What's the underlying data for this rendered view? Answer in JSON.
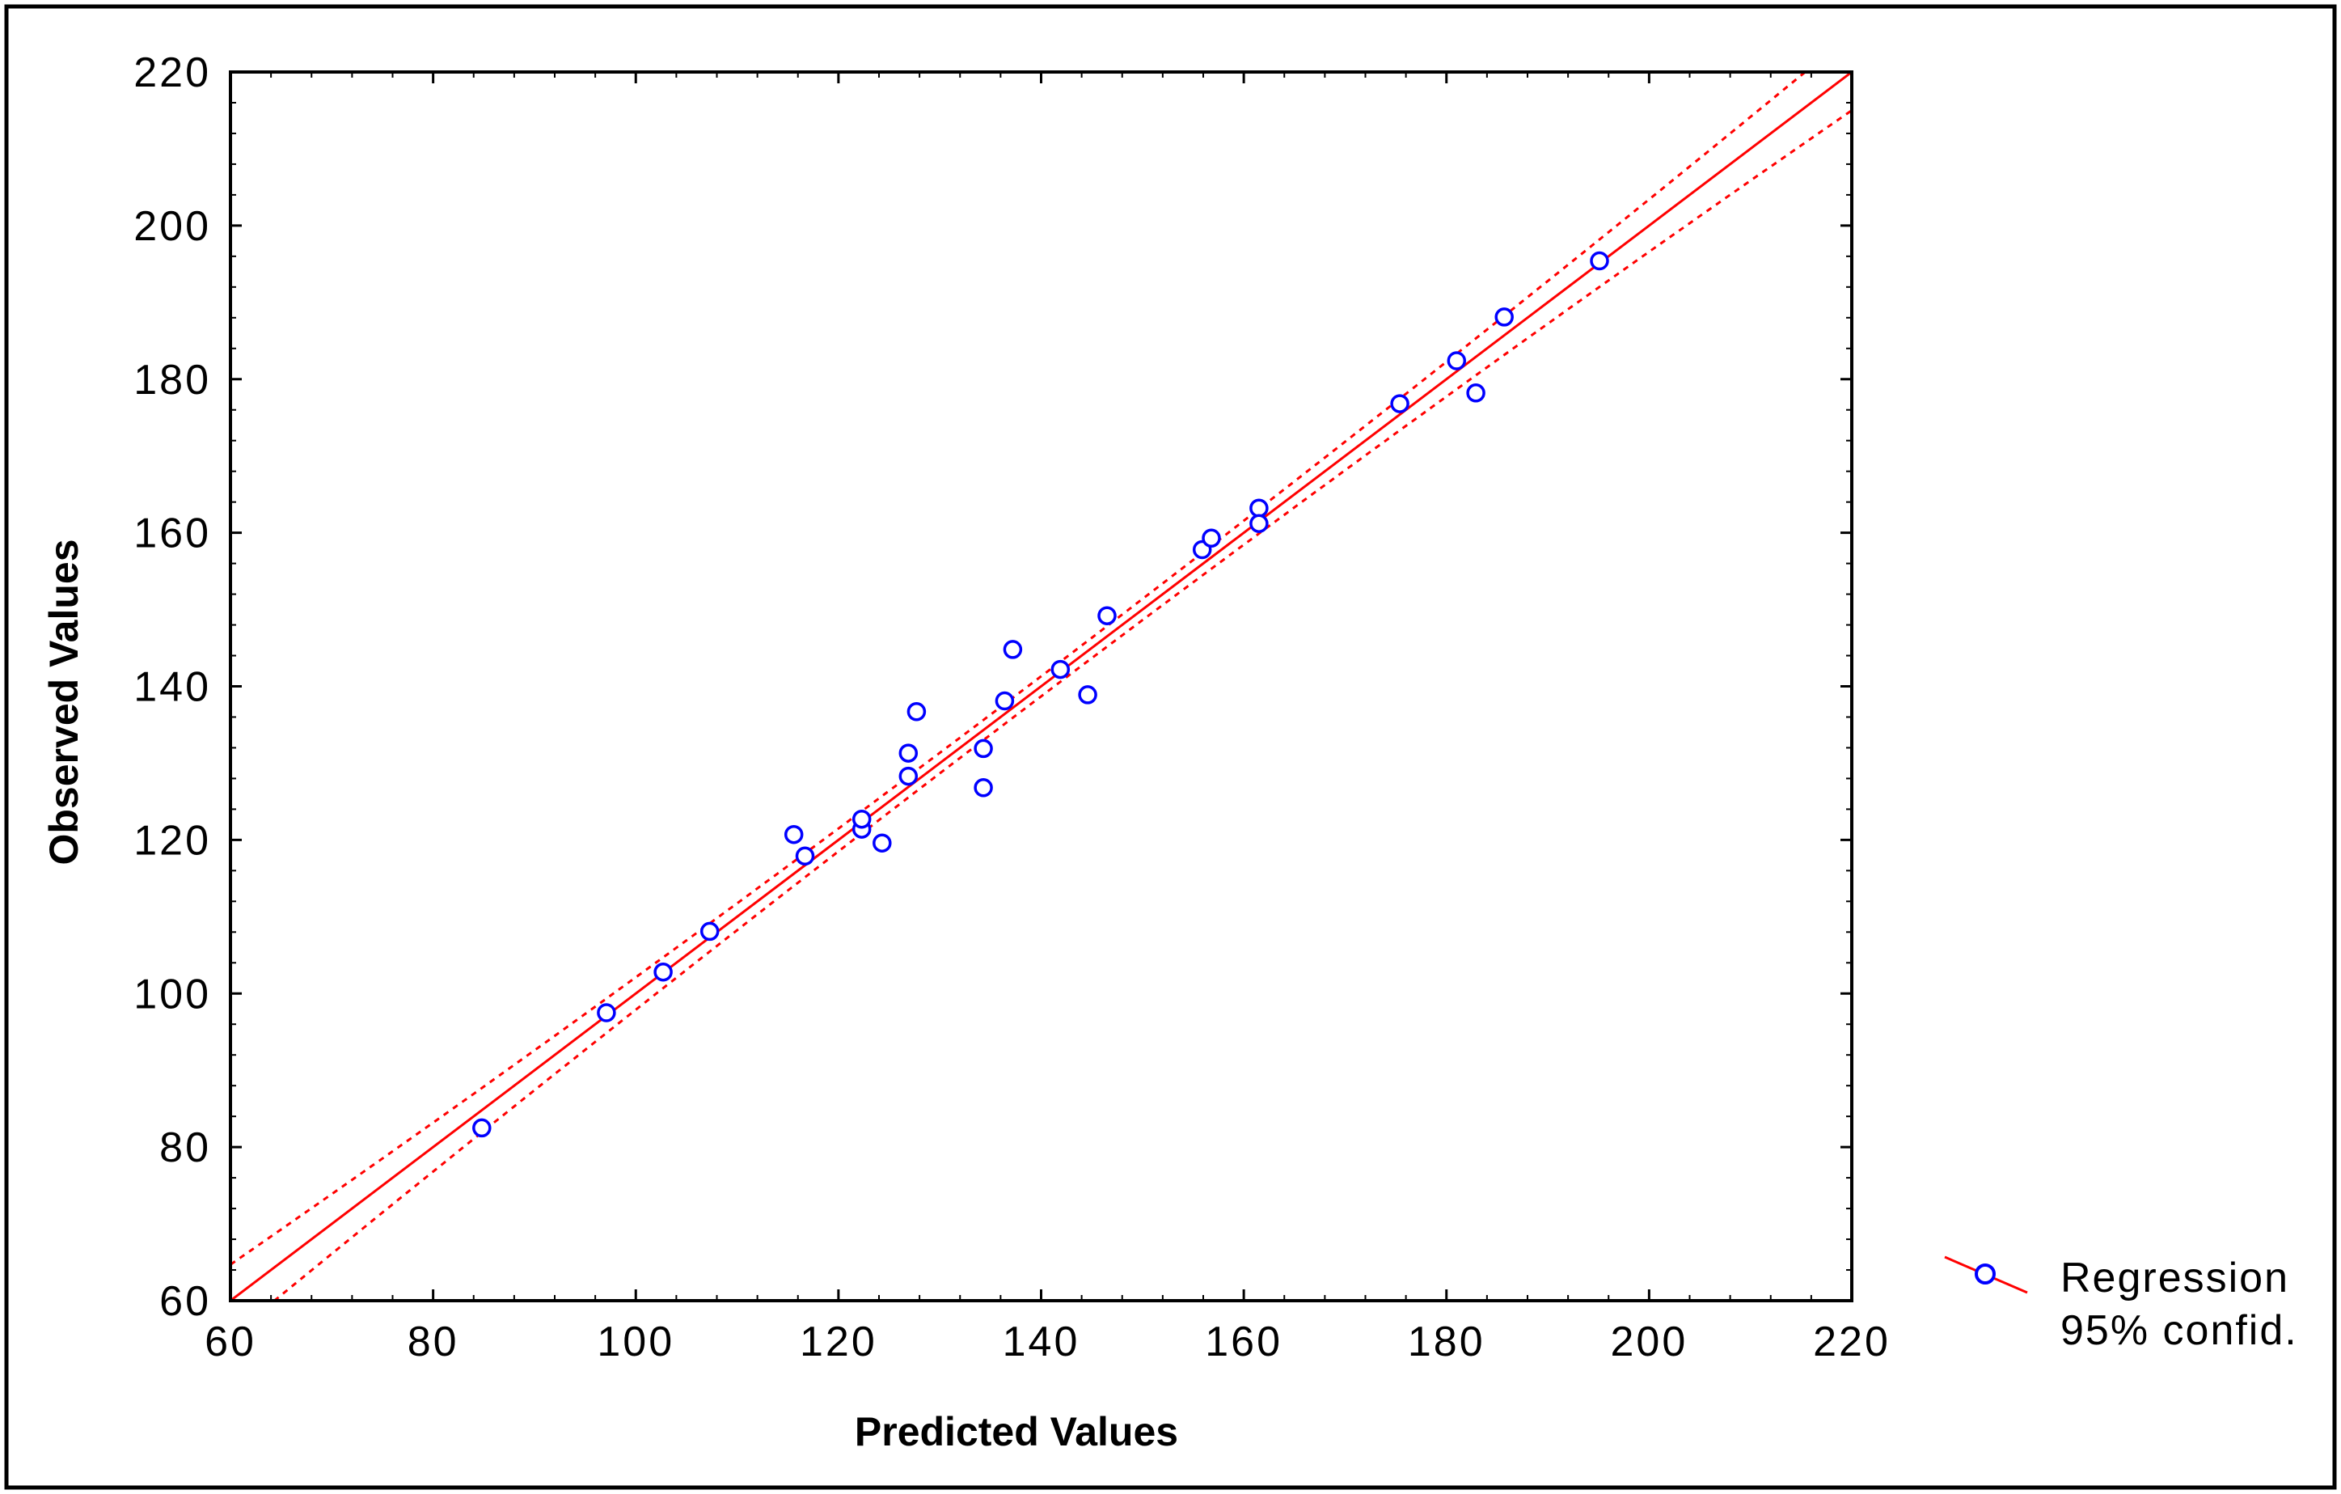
{
  "chart_data": {
    "type": "scatter",
    "title": "",
    "xlabel": "Predicted Values",
    "ylabel": "Observed Values",
    "xlim": [
      60,
      220
    ],
    "ylim": [
      60,
      220
    ],
    "x_ticks": [
      "60",
      "80",
      "100",
      "120",
      "140",
      "160",
      "180",
      "200",
      "220"
    ],
    "y_ticks": [
      "60",
      "80",
      "100",
      "120",
      "140",
      "160",
      "180",
      "200",
      "220"
    ],
    "grid": false,
    "legend_position": "bottom-right, outside plot",
    "legend": [
      "Regression",
      "95% confid."
    ],
    "series": [
      {
        "name": "Regression",
        "points": [
          [
            84.8,
            82.5
          ],
          [
            97.1,
            97.5
          ],
          [
            102.7,
            102.8
          ],
          [
            107.3,
            108.1
          ],
          [
            115.6,
            120.7
          ],
          [
            116.7,
            117.9
          ],
          [
            122.3,
            121.4
          ],
          [
            122.3,
            122.7
          ],
          [
            124.3,
            119.6
          ],
          [
            126.9,
            128.3
          ],
          [
            126.9,
            131.3
          ],
          [
            127.7,
            136.7
          ],
          [
            134.3,
            126.8
          ],
          [
            134.3,
            131.9
          ],
          [
            136.4,
            138.1
          ],
          [
            137.2,
            144.8
          ],
          [
            141.9,
            142.2
          ],
          [
            144.6,
            138.9
          ],
          [
            146.5,
            149.2
          ],
          [
            155.9,
            157.8
          ],
          [
            156.8,
            159.3
          ],
          [
            161.5,
            163.2
          ],
          [
            161.5,
            161.2
          ],
          [
            175.4,
            176.8
          ],
          [
            181.0,
            182.4
          ],
          [
            182.9,
            178.2
          ],
          [
            185.7,
            188.1
          ],
          [
            195.1,
            195.4
          ]
        ]
      }
    ],
    "regression_line": {
      "intercept": 0,
      "slope": 1
    },
    "confidence_band": [
      {
        "x": 60,
        "half_width": 4.7
      },
      {
        "x": 138,
        "half_width": 1.3
      },
      {
        "x": 220,
        "half_width": 5.0
      }
    ],
    "colors": {
      "points": "#0000ff",
      "regression": "#ff0000",
      "confidence": "#ff0000",
      "axes": "#000000"
    }
  }
}
